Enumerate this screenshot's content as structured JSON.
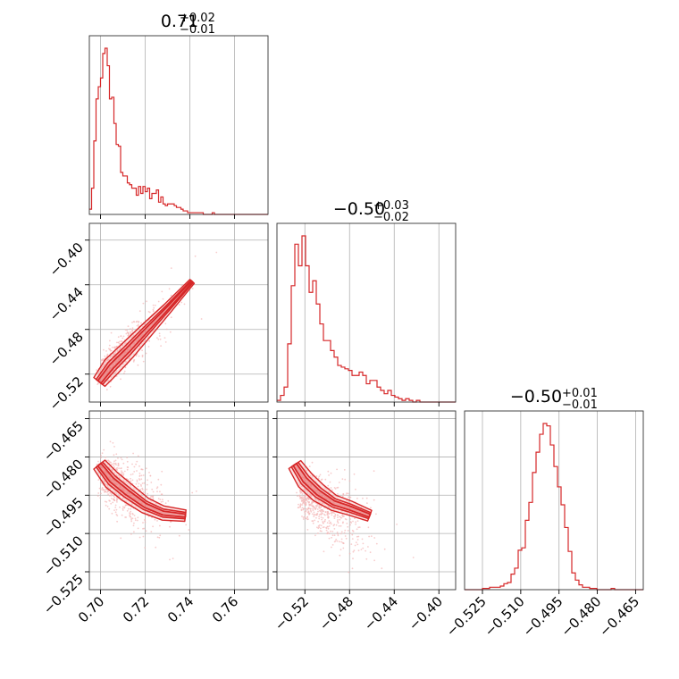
{
  "chart_data": [
    {
      "type": "histogram",
      "panel": "p00",
      "title": {
        "value": "0.71",
        "plus": "+0.02",
        "minus": "−0.01"
      },
      "xlim": [
        0.695,
        0.775
      ],
      "xticks": [
        0.7,
        0.72,
        0.74,
        0.76
      ],
      "bin_edges_start": 0.695,
      "bin_width": 0.001,
      "counts": [
        3,
        15,
        42,
        66,
        73,
        78,
        92,
        95,
        85,
        66,
        67,
        52,
        40,
        39,
        24,
        22,
        22,
        18,
        17,
        15,
        15,
        11,
        16,
        12,
        16,
        13,
        15,
        9,
        12,
        12,
        14,
        7,
        10,
        6,
        5,
        6,
        6,
        6,
        5,
        4,
        4,
        3,
        2,
        2,
        1,
        1,
        1,
        1,
        1,
        1,
        1,
        0,
        0,
        0,
        0,
        1,
        0,
        0,
        0,
        0,
        0,
        0,
        0,
        0,
        0,
        0,
        0,
        0,
        0,
        0,
        0,
        0,
        0,
        0,
        0,
        0,
        0,
        0,
        0,
        0
      ],
      "line_color": "#d62728"
    },
    {
      "type": "scatter",
      "panel": "p10",
      "xlim": [
        0.695,
        0.775
      ],
      "ylim": [
        -0.545,
        -0.385
      ],
      "xticks": [
        0.7,
        0.72,
        0.74,
        0.76
      ],
      "yticks": [
        -0.4,
        -0.44,
        -0.48,
        -0.52
      ],
      "ytick_labels": [
        "−0.40",
        "−0.44",
        "−0.48",
        "−0.52"
      ],
      "relation": "y ≈ -0.5 + 2.0 (x - 0.71)",
      "point_color": "#f4b6b6",
      "contour_color": "#d62728"
    },
    {
      "type": "histogram",
      "panel": "p11",
      "title": {
        "value": "−0.50",
        "plus": "+0.03",
        "minus": "−0.02"
      },
      "xlim": [
        -0.545,
        -0.385
      ],
      "bin_edges_start": -0.545,
      "bin_width": 0.0032,
      "counts": [
        1,
        4,
        9,
        35,
        70,
        95,
        82,
        100,
        82,
        66,
        73,
        59,
        47,
        37,
        37,
        31,
        27,
        22,
        21,
        20,
        19,
        16,
        16,
        18,
        16,
        11,
        13,
        13,
        9,
        7,
        5,
        7,
        4,
        3,
        2,
        1,
        2,
        1,
        0,
        1,
        0,
        0,
        0,
        0,
        0,
        0,
        0,
        0,
        0,
        0
      ],
      "line_color": "#d62728"
    },
    {
      "type": "scatter",
      "panel": "p20",
      "xlim": [
        0.695,
        0.775
      ],
      "ylim": [
        -0.532,
        -0.462
      ],
      "xticks": [
        0.7,
        0.72,
        0.74,
        0.76
      ],
      "yticks": [
        -0.465,
        -0.48,
        -0.495,
        -0.51,
        -0.525
      ],
      "ytick_labels": [
        "−0.465",
        "−0.480",
        "−0.495",
        "−0.510",
        "−0.525"
      ],
      "xtick_labels": [
        "0.70",
        "0.72",
        "0.74",
        "0.76"
      ],
      "point_color": "#f4b6b6",
      "contour_color": "#d62728"
    },
    {
      "type": "scatter",
      "panel": "p21",
      "xlim": [
        -0.545,
        -0.385
      ],
      "ylim": [
        -0.532,
        -0.462
      ],
      "xticks": [
        -0.52,
        -0.48,
        -0.44,
        -0.4
      ],
      "xtick_labels": [
        "−0.52",
        "−0.48",
        "−0.44",
        "−0.40"
      ],
      "point_color": "#f4b6b6",
      "contour_color": "#d62728"
    },
    {
      "type": "histogram",
      "panel": "p22",
      "title": {
        "value": "−0.50",
        "plus": "+0.01",
        "minus": "−0.01"
      },
      "xlim": [
        -0.532,
        -0.462
      ],
      "xticks": [
        -0.525,
        -0.51,
        -0.495,
        -0.48,
        -0.465
      ],
      "xtick_labels": [
        "−0.525",
        "−0.510",
        "−0.495",
        "−0.480",
        "−0.465"
      ],
      "bin_edges_start": -0.532,
      "bin_width": 0.0014,
      "counts": [
        0,
        0,
        0,
        0,
        0,
        1,
        1,
        2,
        2,
        2,
        3,
        5,
        6,
        13,
        18,
        33,
        35,
        58,
        73,
        98,
        115,
        130,
        139,
        137,
        121,
        103,
        86,
        71,
        52,
        32,
        14,
        8,
        4,
        2,
        2,
        1,
        1,
        0,
        0,
        0,
        0,
        1,
        0,
        0,
        0,
        0,
        0,
        0,
        0,
        0
      ],
      "line_color": "#d62728"
    }
  ]
}
